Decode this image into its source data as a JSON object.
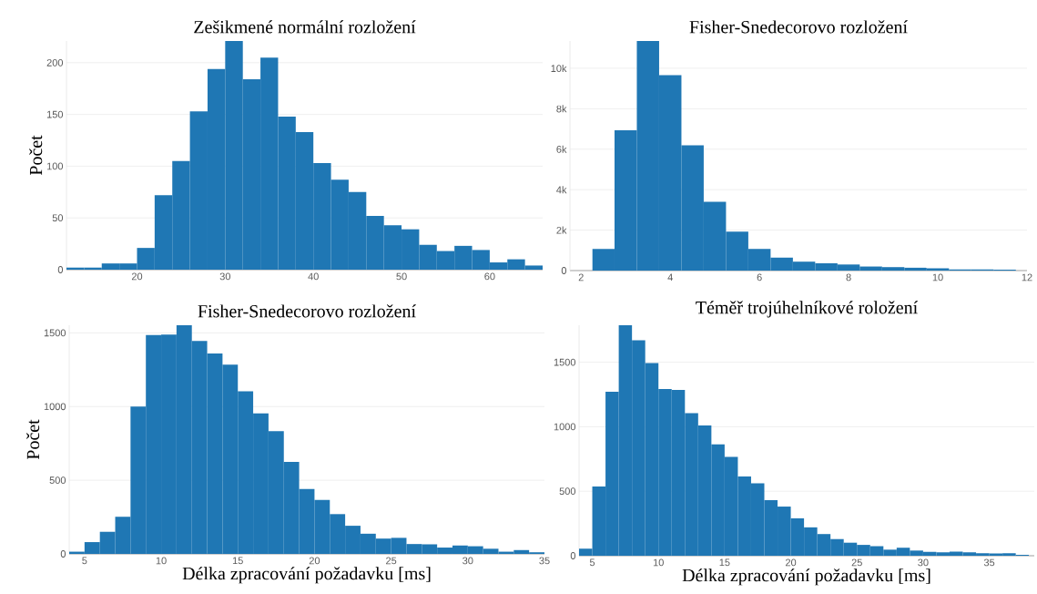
{
  "chart_data": [
    {
      "type": "histogram",
      "title": "Zešikmené normální rozložení",
      "ylabel": "Počet",
      "color": "#1f77b4",
      "grid": "y",
      "bins": [
        12,
        14,
        16,
        18,
        20,
        22,
        24,
        26,
        28,
        30,
        32,
        34,
        36,
        38,
        40,
        42,
        44,
        46,
        48,
        50,
        52,
        54,
        56,
        58,
        60,
        62,
        64,
        66
      ],
      "values": [
        2,
        2,
        6,
        6,
        21,
        72,
        105,
        153,
        194,
        221,
        184,
        205,
        148,
        133,
        103,
        87,
        75,
        52,
        43,
        39,
        24,
        18,
        23,
        19,
        7,
        10,
        4
      ],
      "xlim": [
        12,
        66
      ],
      "ylim": [
        0,
        221
      ],
      "xticks": [
        20,
        30,
        40,
        50,
        60
      ],
      "yticks": [
        0,
        50,
        100,
        150,
        200
      ]
    },
    {
      "type": "histogram",
      "title": "Fisher-Snedecorovo rozložení",
      "color": "#1f77b4",
      "grid": "y",
      "bins": [
        2.25,
        2.75,
        3.25,
        3.75,
        4.25,
        4.75,
        5.25,
        5.75,
        6.25,
        6.75,
        7.25,
        7.75,
        8.25,
        8.75,
        9.25,
        9.75,
        10.25,
        10.75,
        11.25,
        11.75
      ],
      "values": [
        1070,
        6930,
        11350,
        9660,
        6190,
        3400,
        1930,
        1070,
        640,
        440,
        360,
        300,
        200,
        170,
        140,
        110,
        60,
        60,
        50
      ],
      "xlim": [
        1.75,
        12
      ],
      "ylim": [
        0,
        11350
      ],
      "xticks": [
        2,
        4,
        6,
        8,
        10,
        12
      ],
      "yticks": [
        0,
        {
          "value": 2000,
          "label": "2k"
        },
        {
          "value": 4000,
          "label": "4k"
        },
        {
          "value": 6000,
          "label": "6k"
        },
        {
          "value": 8000,
          "label": "8k"
        },
        {
          "value": 10000,
          "label": "10k"
        }
      ]
    },
    {
      "type": "histogram",
      "title": "Fisher-Snedecorovo rozložení",
      "xlabel": "Délka zpracování požadavku [ms]",
      "ylabel": "Počet",
      "color": "#1f77b4",
      "grid": "y",
      "bins": [
        4,
        5,
        6,
        7,
        8,
        9,
        10,
        11,
        12,
        13,
        14,
        15,
        16,
        17,
        18,
        19,
        20,
        21,
        22,
        23,
        24,
        25,
        26,
        27,
        28,
        29,
        30,
        31,
        32,
        33,
        34,
        35
      ],
      "values": [
        15,
        80,
        150,
        252,
        1000,
        1485,
        1489,
        1552,
        1446,
        1361,
        1285,
        1104,
        954,
        833,
        624,
        441,
        367,
        270,
        191,
        137,
        104,
        109,
        67,
        65,
        43,
        57,
        52,
        35,
        15,
        26,
        11
      ],
      "xlim": [
        4,
        35
      ],
      "ylim": [
        0,
        1552
      ],
      "xticks": [
        5,
        10,
        15,
        20,
        25,
        30,
        35
      ],
      "yticks": [
        0,
        500,
        1000,
        1500
      ]
    },
    {
      "type": "histogram",
      "title": "Téměř trojúhelníkové roložení",
      "xlabel": "Délka zpracování požadavku [ms]",
      "color": "#1f77b4",
      "grid": "y",
      "bins": [
        4,
        5,
        6,
        7,
        8,
        9,
        10,
        11,
        12,
        13,
        14,
        15,
        16,
        17,
        18,
        19,
        20,
        21,
        22,
        23,
        24,
        25,
        26,
        27,
        28,
        29,
        30,
        31,
        32,
        33,
        34,
        35,
        36,
        37,
        38
      ],
      "values": [
        54,
        537,
        1272,
        1787,
        1671,
        1493,
        1292,
        1285,
        1106,
        1010,
        864,
        767,
        614,
        562,
        431,
        381,
        290,
        220,
        168,
        129,
        101,
        84,
        74,
        47,
        62,
        40,
        30,
        27,
        32,
        27,
        20,
        17,
        20,
        7
      ],
      "xlim": [
        4,
        38.4
      ],
      "ylim": [
        0,
        1787
      ],
      "xticks": [
        5,
        10,
        15,
        20,
        25,
        30,
        35
      ],
      "yticks": [
        0,
        500,
        1000,
        1500
      ]
    }
  ]
}
